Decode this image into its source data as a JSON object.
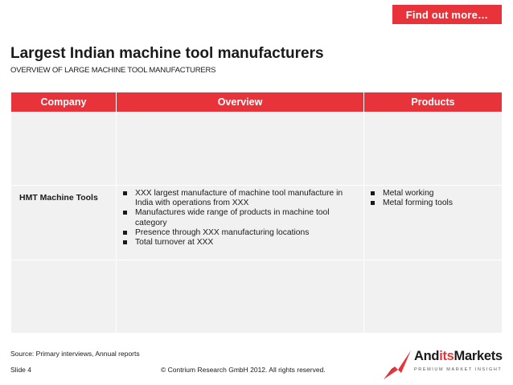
{
  "cta": {
    "label": "Find out more…"
  },
  "title": "Largest Indian machine tool manufacturers",
  "subtitle": "OVERVIEW OF LARGE MACHINE TOOL MANUFACTURERS",
  "table": {
    "headers": [
      "Company",
      "Overview",
      "Products"
    ],
    "rows": [
      {
        "company": "",
        "overview": [],
        "products": []
      },
      {
        "company": "HMT Machine Tools",
        "overview": [
          "XXX largest manufacture of machine tool manufacture in India with operations from XXX",
          "Manufactures wide range of products in machine tool category",
          "Presence through XXX manufacturing locations",
          "Total turnover at XXX"
        ],
        "products": [
          "Metal working",
          "Metal forming tools"
        ]
      },
      {
        "company": "",
        "overview": [],
        "products": []
      }
    ]
  },
  "footer": {
    "source": "Source: Primary interviews, Annual reports",
    "slide": "Slide 4",
    "copyright": "© Contrium Research GmbH 2012. All rights reserved."
  },
  "logo": {
    "name_part1": "And",
    "name_part2": "its",
    "name_part3": "Markets",
    "tagline": "PREMIUM MARKET INSIGHT"
  },
  "colors": {
    "accent": "#e8333a",
    "cell_bg": "#f1f1f1",
    "text": "#1a1a1a"
  }
}
